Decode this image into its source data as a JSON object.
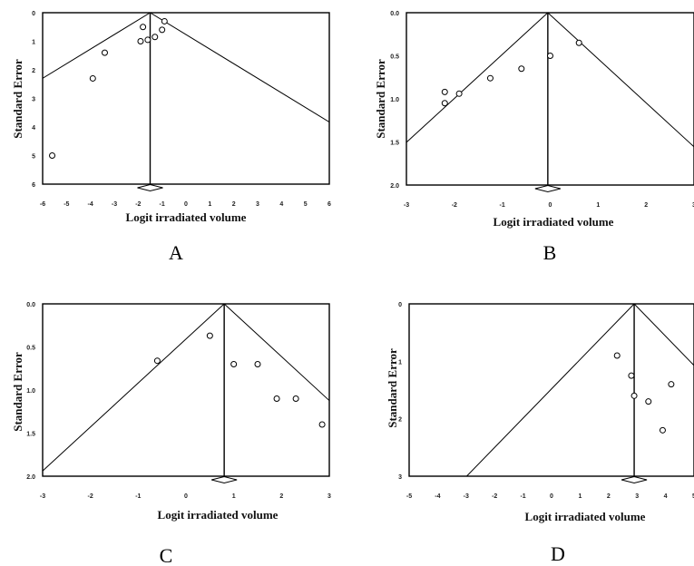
{
  "chart_data": [
    {
      "panel_label": "A",
      "type": "scatter",
      "xlabel": "Logit irradiated volume",
      "ylabel": "Standard Error",
      "xlim": [
        -6,
        6
      ],
      "ylim": [
        0,
        6
      ],
      "y_inverted": true,
      "xticks": [
        "-6",
        "-5",
        "-4",
        "-3",
        "-2",
        "-1",
        "0",
        "1",
        "2",
        "3",
        "4",
        "5",
        "6"
      ],
      "yticks": [
        "0",
        "1",
        "2",
        "3",
        "4",
        "5",
        "6"
      ],
      "pooled_estimate": -1.5,
      "funnel": true,
      "points": [
        [
          -5.6,
          5.0
        ],
        [
          -3.9,
          2.3
        ],
        [
          -3.4,
          1.4
        ],
        [
          -1.8,
          0.5
        ],
        [
          -1.9,
          1.0
        ],
        [
          -1.6,
          0.95
        ],
        [
          -1.3,
          0.85
        ],
        [
          -1.0,
          0.6
        ],
        [
          -0.9,
          0.3
        ]
      ]
    },
    {
      "panel_label": "B",
      "type": "scatter",
      "xlabel": "Logit irradiated volume",
      "ylabel": "Standard Error",
      "xlim": [
        -3,
        3
      ],
      "ylim": [
        0,
        2
      ],
      "y_inverted": true,
      "xticks": [
        "-3",
        "-2",
        "-1",
        "0",
        "1",
        "2",
        "3"
      ],
      "yticks": [
        "0.0",
        "0.5",
        "1.0",
        "1.5",
        "2.0"
      ],
      "pooled_estimate": -0.05,
      "funnel": true,
      "points": [
        [
          -2.2,
          0.92
        ],
        [
          -2.2,
          1.05
        ],
        [
          -1.9,
          0.94
        ],
        [
          -1.25,
          0.76
        ],
        [
          -0.6,
          0.65
        ],
        [
          0.0,
          0.5
        ],
        [
          0.6,
          0.35
        ]
      ]
    },
    {
      "panel_label": "C",
      "type": "scatter",
      "xlabel": "Logit irradiated volume",
      "ylabel": "Standard Error",
      "xlim": [
        -3,
        3
      ],
      "ylim": [
        0,
        2
      ],
      "y_inverted": true,
      "xticks": [
        "-3",
        "-2",
        "-1",
        "0",
        "1",
        "2",
        "3"
      ],
      "yticks": [
        "0.0",
        "0.5",
        "1.0",
        "1.5",
        "2.0"
      ],
      "pooled_estimate": 0.8,
      "funnel": true,
      "points": [
        [
          -0.6,
          0.66
        ],
        [
          0.5,
          0.37
        ],
        [
          1.0,
          0.7
        ],
        [
          1.5,
          0.7
        ],
        [
          1.9,
          1.1
        ],
        [
          2.3,
          1.1
        ],
        [
          2.85,
          1.4
        ]
      ]
    },
    {
      "panel_label": "D",
      "type": "scatter",
      "xlabel": "Logit irradiated volume",
      "ylabel": "Standard Error",
      "xlim": [
        -5,
        5
      ],
      "ylim": [
        0,
        3
      ],
      "y_inverted": true,
      "xticks": [
        "-5",
        "-4",
        "-3",
        "-2",
        "-1",
        "0",
        "1",
        "2",
        "3",
        "4",
        "5"
      ],
      "yticks": [
        "0",
        "1",
        "2",
        "3"
      ],
      "pooled_estimate": 2.9,
      "funnel": true,
      "points": [
        [
          2.3,
          0.9
        ],
        [
          2.8,
          1.25
        ],
        [
          2.9,
          1.6
        ],
        [
          3.4,
          1.7
        ],
        [
          4.2,
          1.4
        ],
        [
          3.9,
          2.2
        ]
      ]
    }
  ]
}
